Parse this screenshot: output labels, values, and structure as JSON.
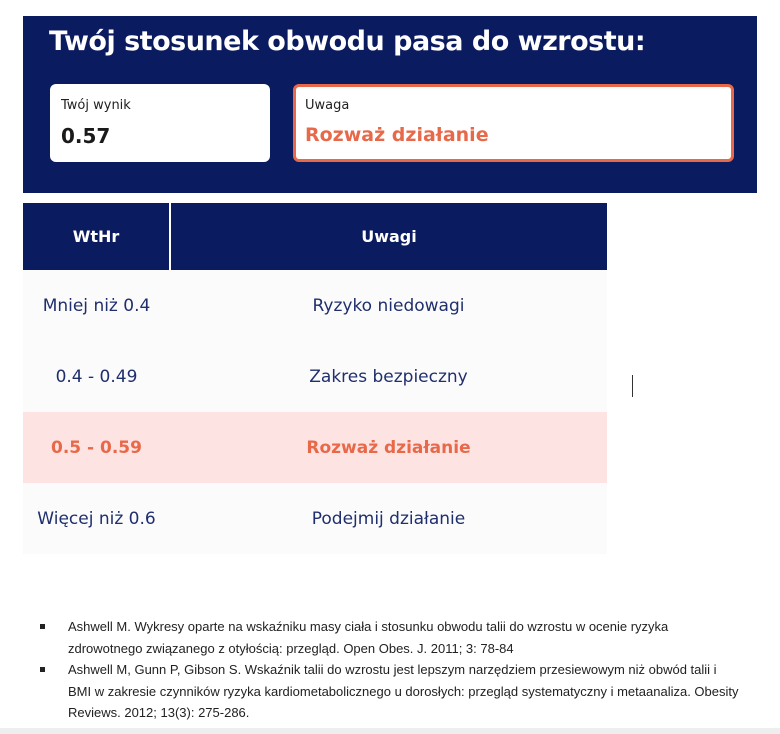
{
  "banner": {
    "title": "Twój stosunek obwodu pasa do wzrostu:",
    "score_label": "Twój wynik",
    "score_value": "0.57",
    "note_label": "Uwaga",
    "note_value": "Rozważ działanie"
  },
  "colors": {
    "navy": "#0b1b60",
    "accent": "#e8694a",
    "highlight": "#fde3e1"
  },
  "table": {
    "headers": [
      "WtHr",
      "Uwagi"
    ],
    "rows": [
      [
        "Mniej niż 0.4",
        "Ryzyko niedowagi"
      ],
      [
        "0.4 - 0.49",
        "Zakres bezpieczny"
      ],
      [
        "0.5 - 0.59",
        "Rozważ działanie"
      ],
      [
        "Więcej niż 0.6",
        "Podejmij działanie"
      ]
    ],
    "highlighted_row": 2
  },
  "references": [
    "Ashwell M. Wykresy oparte na wskaźniku masy ciała i stosunku obwodu talii do wzrostu w ocenie ryzyka zdrowotnego związanego z otyłością: przegląd. Open Obes. J. 2011; 3: 78-84",
    "Ashwell M, Gunn P, Gibson S. Wskaźnik talii do wzrostu jest lepszym narzędziem przesiewowym niż obwód talii i BMI w zakresie czynników ryzyka kardiometabolicznego u dorosłych: przegląd systematyczny i metaanaliza. Obesity Reviews. 2012; 13(3): 275-286."
  ]
}
